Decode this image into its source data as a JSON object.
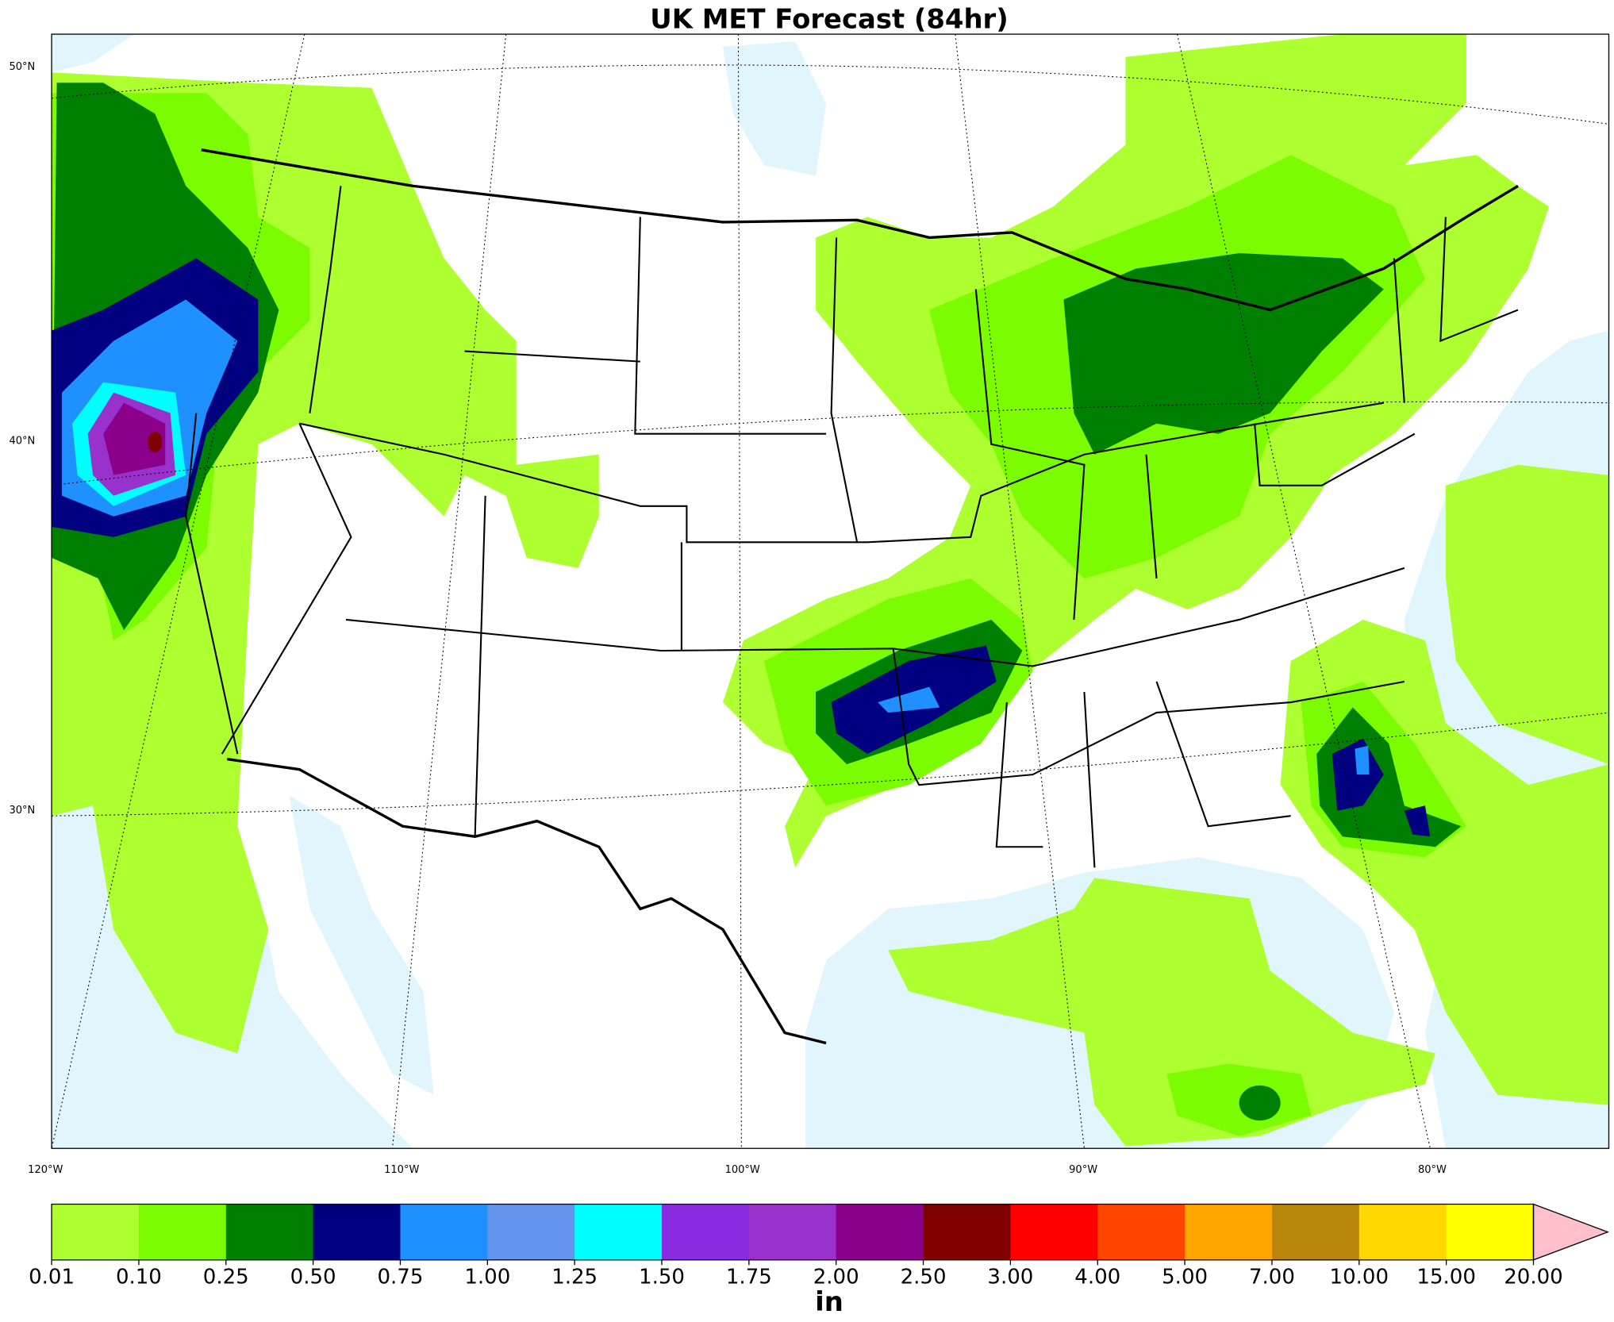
{
  "title": "UK MET Forecast (84hr)",
  "lat_labels": [
    "50°N",
    "40°N",
    "30°N"
  ],
  "lon_labels": [
    "120°W",
    "110°W",
    "100°W",
    "90°W",
    "80°W"
  ],
  "colorbar": {
    "labels": [
      "0.01",
      "0.10",
      "0.25",
      "0.50",
      "0.75",
      "1.00",
      "1.25",
      "1.50",
      "1.75",
      "2.00",
      "2.50",
      "3.00",
      "4.00",
      "5.00",
      "7.00",
      "10.00",
      "15.00",
      "20.00"
    ],
    "colors": [
      "#adff2f",
      "#7cfc00",
      "#008000",
      "#000080",
      "#1e90ff",
      "#6495ed",
      "#00ffff",
      "#8a2be2",
      "#9932cc",
      "#8b008b",
      "#800000",
      "#ff0000",
      "#ff4500",
      "#ffa500",
      "#b8860b",
      "#ffd700",
      "#ffff00"
    ],
    "extend_color": "#ffc0cb",
    "unit": "in"
  }
}
